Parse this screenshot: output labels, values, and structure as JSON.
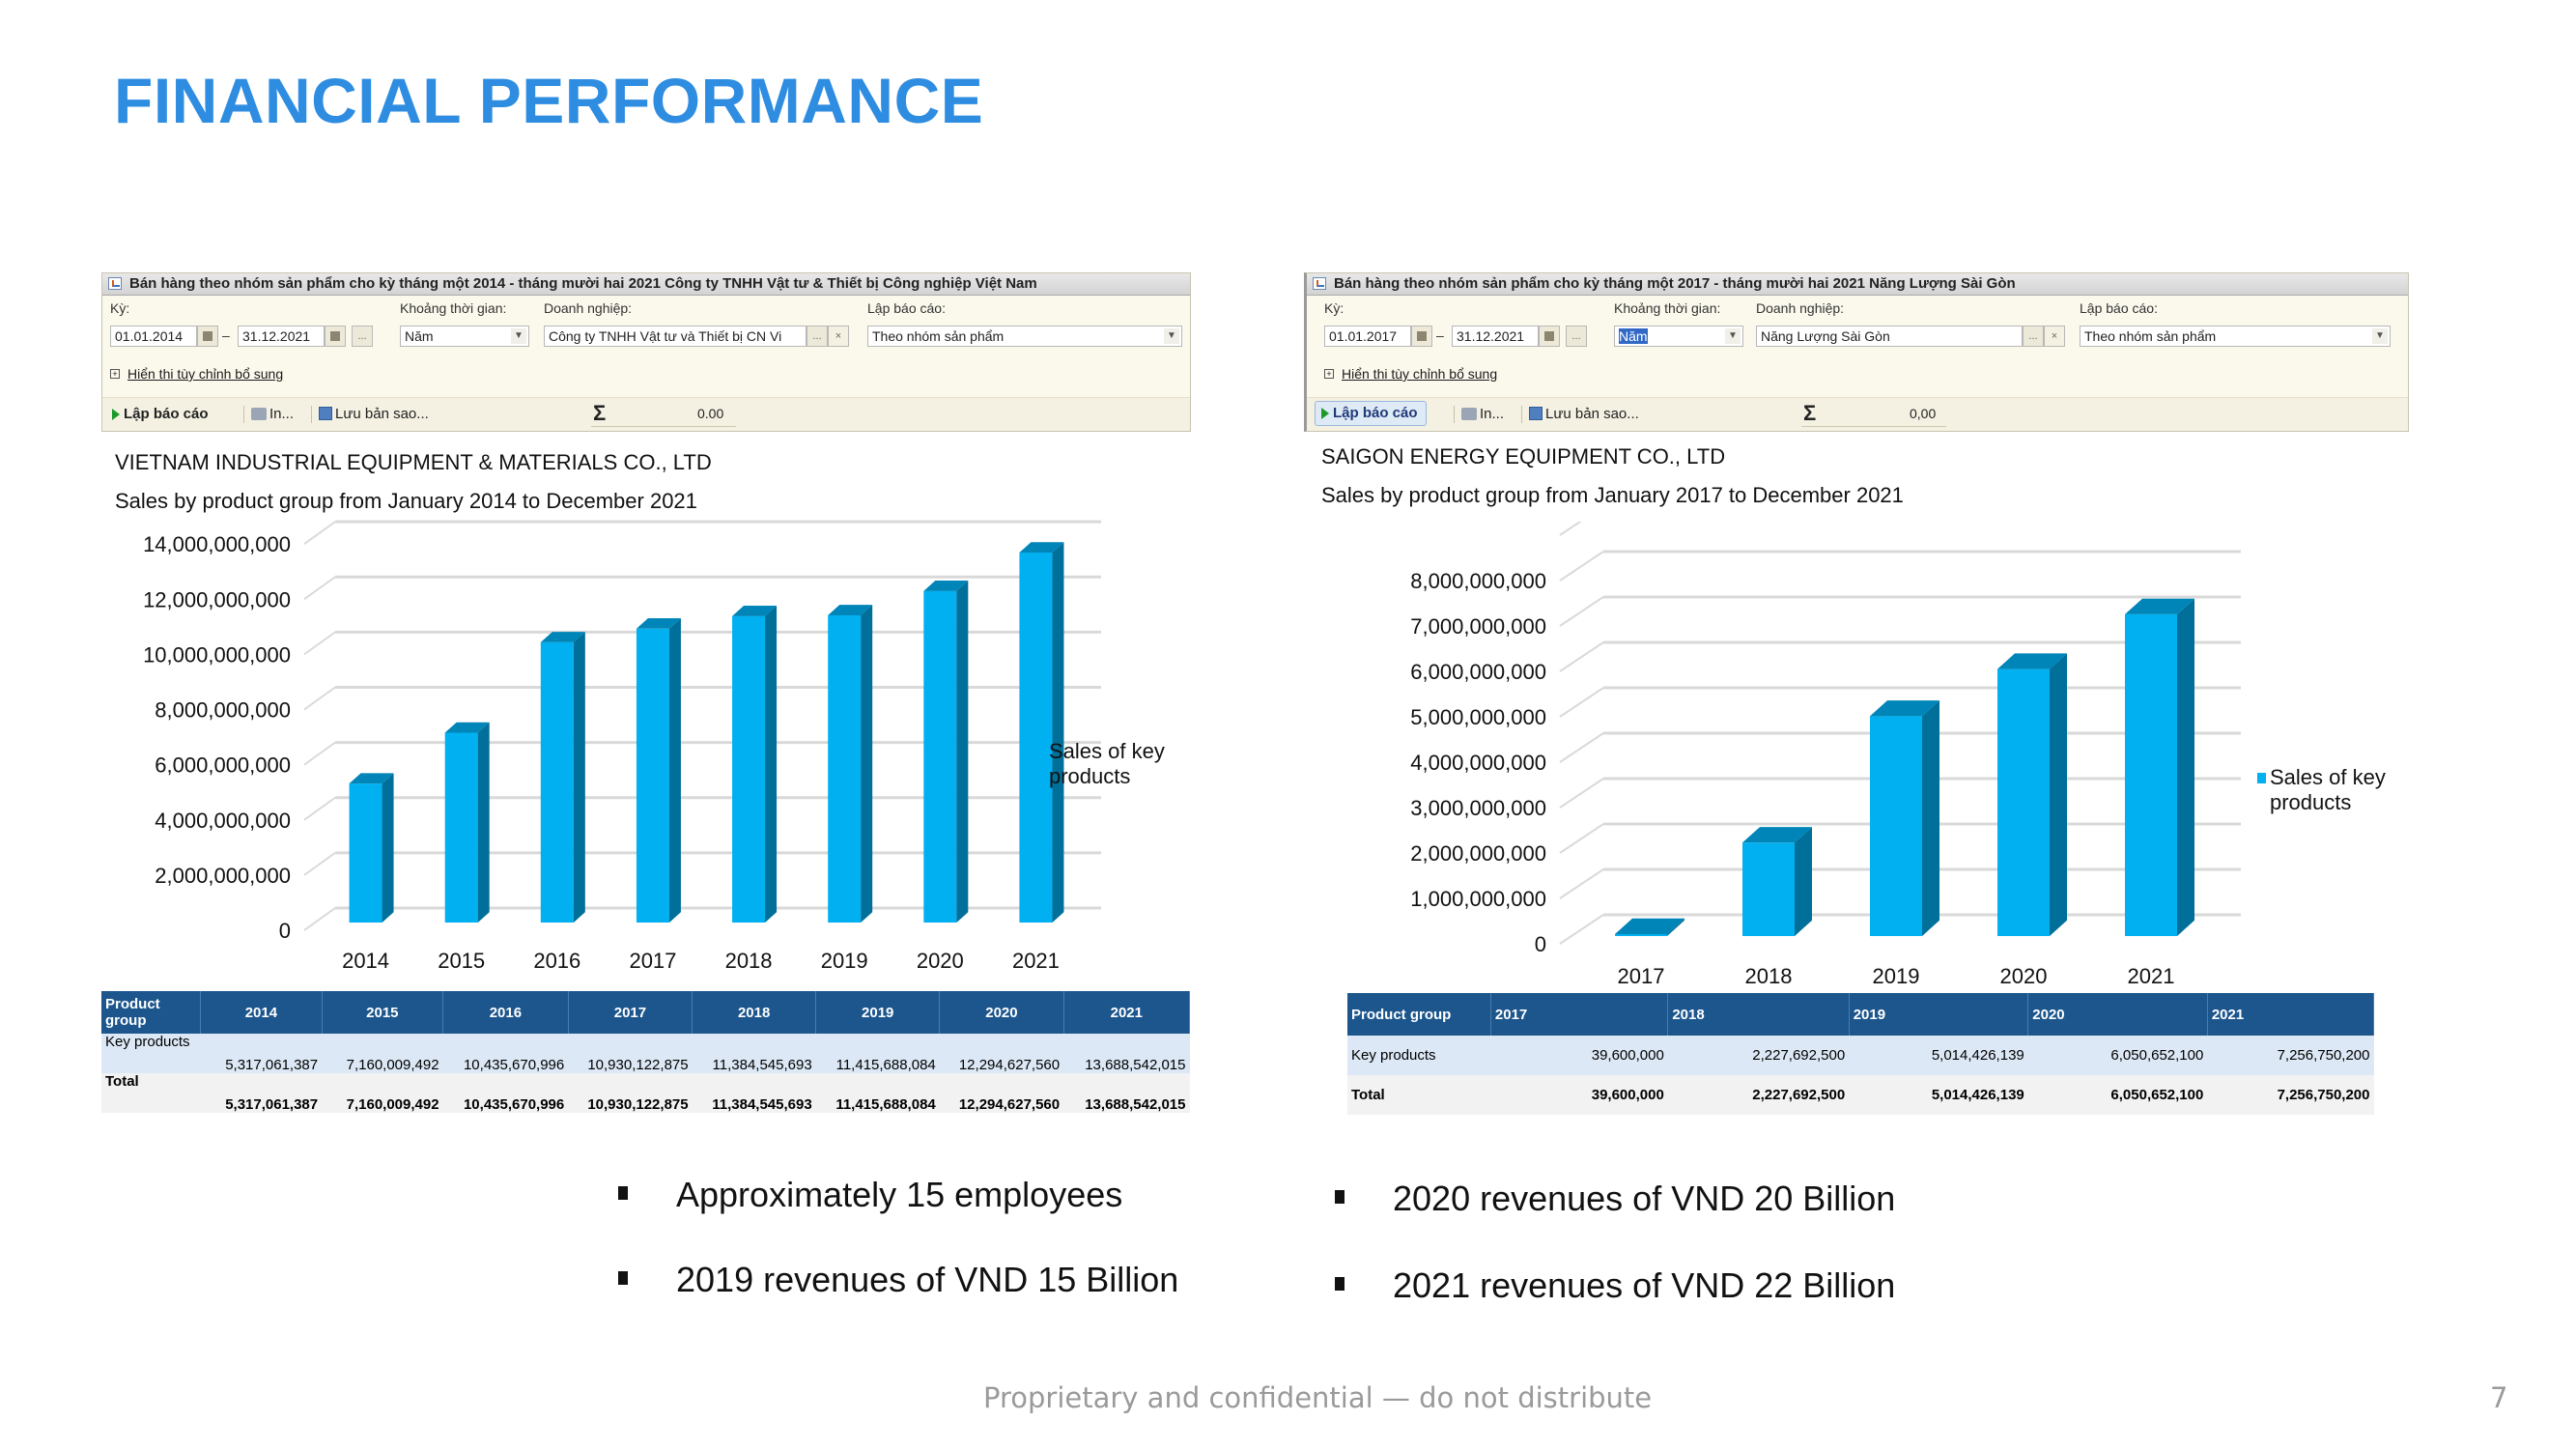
{
  "slide": {
    "title": "FINANCIAL PERFORMANCE",
    "footer": "Proprietary and confidential — do not distribute",
    "page_number": "7",
    "accent_color": "#2E8DE1"
  },
  "left": {
    "panel": {
      "title": "Bán hàng theo nhóm sản phẩm cho kỳ tháng một 2014 - tháng mười hai 2021 Công ty TNHH Vật tư & Thiết bị Công nghiệp Việt Nam",
      "period_label": "Kỳ:",
      "date_from": "01.01.2014",
      "date_to": "31.12.2021",
      "range_dash": "–",
      "more_button": "...",
      "interval_label": "Khoảng thời gian:",
      "interval_value": "Năm",
      "company_label": "Doanh nghiệp:",
      "company_value": "Công ty TNHH Vật tư và Thiết bị CN Vi",
      "clear_button": "×",
      "report_label": "Lập báo cáo:",
      "report_value": "Theo nhóm sản phẩm",
      "extra_settings_link": "Hiển thi tùy chỉnh bổ sung",
      "run_button": "Lập báo cáo",
      "print_button": "In...",
      "save_button": "Lưu bản sao...",
      "sigma": "Σ",
      "sum_value": "0.00"
    },
    "company": "VIETNAM INDUSTRIAL EQUIPMENT & MATERIALS CO., LTD",
    "subtitle": "Sales by product group from January 2014 to December 2021",
    "table": {
      "header": [
        "Product group",
        "2014",
        "2015",
        "2016",
        "2017",
        "2018",
        "2019",
        "2020",
        "2021"
      ],
      "rows": [
        [
          "Key products",
          "5,317,061,387",
          "7,160,009,492",
          "10,435,670,996",
          "10,930,122,875",
          "11,384,545,693",
          "11,415,688,084",
          "12,294,627,560",
          "13,688,542,015"
        ],
        [
          "Total",
          "5,317,061,387",
          "7,160,009,492",
          "10,435,670,996",
          "10,930,122,875",
          "11,384,545,693",
          "11,415,688,084",
          "12,294,627,560",
          "13,688,542,015"
        ]
      ]
    },
    "bullets": [
      "Approximately 15 employees",
      "2019 revenues of VND 15 Billion"
    ]
  },
  "right": {
    "panel": {
      "title": "Bán hàng theo nhóm sản phẩm cho kỳ tháng một 2017 - tháng mười hai 2021 Năng Lượng Sài Gòn",
      "period_label": "Kỳ:",
      "date_from": "01.01.2017",
      "date_to": "31.12.2021",
      "range_dash": "–",
      "more_button": "...",
      "interval_label": "Khoảng thời gian:",
      "interval_value": "Năm",
      "company_label": "Doanh nghiệp:",
      "company_value": "Năng Lượng Sài Gòn",
      "clear_button": "×",
      "report_label": "Lập báo cáo:",
      "report_value": "Theo nhóm sản phẩm",
      "extra_settings_link": "Hiển thi tùy chỉnh bổ sung",
      "run_button": "Lập báo cáo",
      "print_button": "In...",
      "save_button": "Lưu bản sao...",
      "sigma": "Σ",
      "sum_value": "0,00"
    },
    "company": "SAIGON ENERGY EQUIPMENT CO., LTD",
    "subtitle": "Sales by product group from January 2017 to December 2021",
    "table": {
      "header": [
        "Product group",
        "2017",
        "2018",
        "2019",
        "2020",
        "2021"
      ],
      "rows": [
        [
          "Key products",
          "39,600,000",
          "2,227,692,500",
          "5,014,426,139",
          "6,050,652,100",
          "7,256,750,200"
        ],
        [
          "Total",
          "39,600,000",
          "2,227,692,500",
          "5,014,426,139",
          "6,050,652,100",
          "7,256,750,200"
        ]
      ]
    },
    "bullets": [
      "2020 revenues of VND 20 Billion",
      "2021 revenues of VND 22 Billion"
    ]
  },
  "chart_data": [
    {
      "type": "bar",
      "title": "VIETNAM INDUSTRIAL EQUIPMENT & MATERIALS CO., LTD",
      "subtitle": "Sales by product group from January 2014 to December 2021",
      "categories": [
        "2014",
        "2015",
        "2016",
        "2017",
        "2018",
        "2019",
        "2020",
        "2021"
      ],
      "series": [
        {
          "name": "Sales of key products",
          "values": [
            5317061387,
            7160009492,
            10435670996,
            10930122875,
            11384545693,
            11415688084,
            12294627560,
            13688542015
          ],
          "color": "#00B0F0"
        }
      ],
      "yticks": [
        0,
        2000000000,
        4000000000,
        6000000000,
        8000000000,
        10000000000,
        12000000000,
        14000000000
      ],
      "ytick_labels": [
        "0",
        "2,000,000,000",
        "4,000,000,000",
        "6,000,000,000",
        "8,000,000,000",
        "10,000,000,000",
        "12,000,000,000",
        "14,000,000,000"
      ],
      "ylim": [
        0,
        16000000000
      ],
      "xlabel": "",
      "ylabel": "",
      "grid": true,
      "legend": "right",
      "style": "3d-column"
    },
    {
      "type": "bar",
      "title": "SAIGON ENERGY EQUIPMENT CO., LTD",
      "subtitle": "Sales by product group from January 2017 to December 2021",
      "categories": [
        "2017",
        "2018",
        "2019",
        "2020",
        "2021"
      ],
      "series": [
        {
          "name": "Sales of key products",
          "values": [
            39600000,
            2227692500,
            5014426139,
            6050652100,
            7256750200
          ],
          "color": "#00B0F0"
        }
      ],
      "yticks": [
        0,
        1000000000,
        2000000000,
        3000000000,
        4000000000,
        5000000000,
        6000000000,
        7000000000,
        8000000000
      ],
      "ytick_labels": [
        "0",
        "1,000,000,000",
        "2,000,000,000",
        "3,000,000,000",
        "4,000,000,000",
        "5,000,000,000",
        "6,000,000,000",
        "7,000,000,000",
        "8,000,000,000"
      ],
      "ylim": [
        0,
        9000000000
      ],
      "xlabel": "",
      "ylabel": "",
      "grid": true,
      "legend": "right",
      "style": "3d-column"
    }
  ]
}
